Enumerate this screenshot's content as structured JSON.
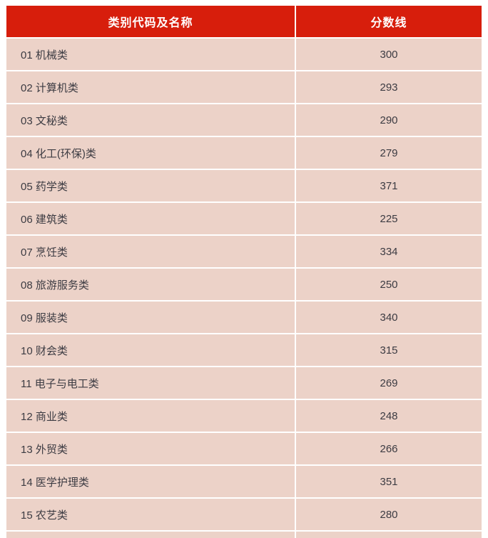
{
  "table": {
    "columns": [
      {
        "label": "类别代码及名称"
      },
      {
        "label": "分数线"
      }
    ],
    "rows": [
      {
        "category": "01 机械类",
        "score": "300"
      },
      {
        "category": "02 计算机类",
        "score": "293"
      },
      {
        "category": "03 文秘类",
        "score": "290"
      },
      {
        "category": "04 化工(环保)类",
        "score": "279"
      },
      {
        "category": "05 药学类",
        "score": "371"
      },
      {
        "category": "06 建筑类",
        "score": "225"
      },
      {
        "category": "07 烹饪类",
        "score": "334"
      },
      {
        "category": "08 旅游服务类",
        "score": "250"
      },
      {
        "category": "09 服装类",
        "score": "340"
      },
      {
        "category": "10 财会类",
        "score": "315"
      },
      {
        "category": "11 电子与电工类",
        "score": "269"
      },
      {
        "category": "12 商业类",
        "score": "248"
      },
      {
        "category": "13 外贸类",
        "score": "266"
      },
      {
        "category": "14 医学护理类",
        "score": "351"
      },
      {
        "category": "15 农艺类",
        "score": "280"
      }
    ],
    "colors": {
      "header_bg": "#d71e0c",
      "header_text": "#ffffff",
      "row_bg": "#ecd2c8",
      "body_text": "#3c3b42",
      "separator": "#ffffff"
    }
  }
}
